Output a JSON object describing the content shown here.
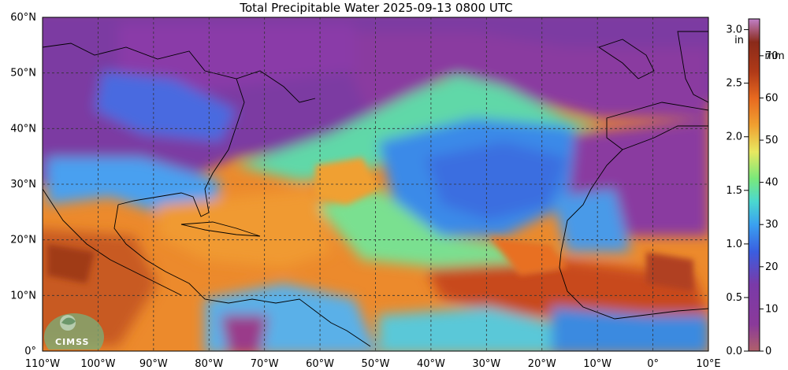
{
  "title": "Total Precipitable Water  2025-09-13 0800 UTC",
  "lat_labels": [
    "60°N",
    "50°N",
    "40°N",
    "30°N",
    "20°N",
    "10°N",
    "0°"
  ],
  "lon_labels": [
    "110°W",
    "100°W",
    "90°W",
    "80°W",
    "70°W",
    "60°W",
    "50°W",
    "40°W",
    "30°W",
    "20°W",
    "10°W",
    "0°",
    "10°E"
  ],
  "colorbar": {
    "in_unit": "in",
    "mm_unit": "mm",
    "in_ticks": [
      "0.0",
      "0.5",
      "1.0",
      "1.5",
      "2.0",
      "2.5",
      "3.0"
    ],
    "mm_ticks": [
      "0",
      "10",
      "20",
      "30",
      "40",
      "50",
      "60",
      "70"
    ],
    "colors": [
      "#b0606a",
      "#8a3a9a",
      "#7a3aa8",
      "#3a5ee0",
      "#3aa0f0",
      "#4ad8d0",
      "#7ae87a",
      "#e8e860",
      "#f0a030",
      "#e86a20",
      "#b03a18",
      "#8a2a1a",
      "#c080c8"
    ]
  },
  "logo": {
    "text": "CIMSS"
  },
  "field_colors": {
    "dry": "#7a3aa0",
    "moist": "#3aa0f0",
    "wet": "#f09030",
    "very_wet": "#c04018"
  }
}
